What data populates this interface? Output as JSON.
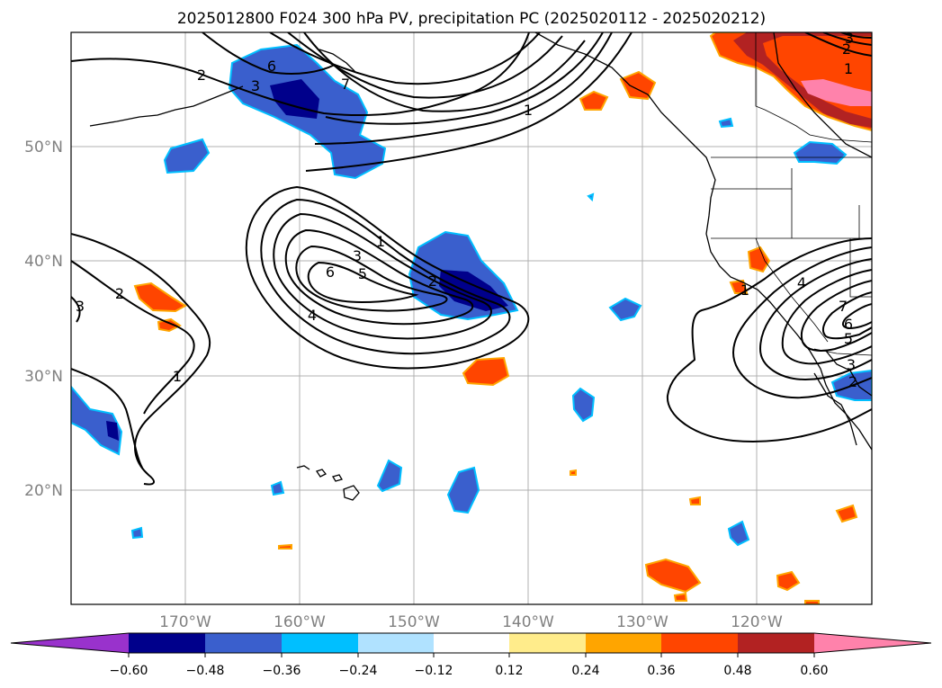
{
  "figure": {
    "title": "2025012800 F024 300 hPa PV, precipitation PC (2025020112 - 2025020212)"
  },
  "map": {
    "projection": "cylindrical",
    "extent_lon": [
      -180,
      -110
    ],
    "extent_lat": [
      10,
      60
    ],
    "gridlines": true,
    "lon_labels": [
      "170°W",
      "160°W",
      "150°W",
      "140°W",
      "130°W",
      "120°W"
    ],
    "lat_labels": [
      "50°N",
      "40°N",
      "30°N",
      "20°N"
    ],
    "fill_field": "precipitation PC",
    "contour_field": "300 hPa PV",
    "contour_labels": [
      "2",
      "6",
      "3",
      "7",
      "1",
      "2",
      "3",
      "1",
      "1",
      "3",
      "5",
      "6",
      "4",
      "2",
      "2",
      "3",
      "1",
      "1",
      "4",
      "7",
      "6",
      "5",
      "3",
      "2",
      "3",
      "2",
      "1"
    ]
  },
  "colorbar": {
    "orientation": "horizontal",
    "extend": "both",
    "ticks": [
      "−0.60",
      "−0.48",
      "−0.36",
      "−0.24",
      "−0.12",
      "0.12",
      "0.24",
      "0.36",
      "0.48",
      "0.60"
    ],
    "colors": {
      "lt_-0.60": "#9932cc",
      "-0.60_-0.48": "#00008b",
      "-0.48_-0.36": "#3a5fcd",
      "-0.36_-0.24": "#00bfff",
      "-0.24_-0.12": "#b0e2ff",
      "-0.12_0.12": "#ffffff",
      "0.12_0.24": "#ffec8b",
      "0.24_0.36": "#ffa500",
      "0.36_0.48": "#ff4500",
      "0.48_0.60": "#b22222",
      "gt_0.60": "#ff82ab"
    }
  }
}
